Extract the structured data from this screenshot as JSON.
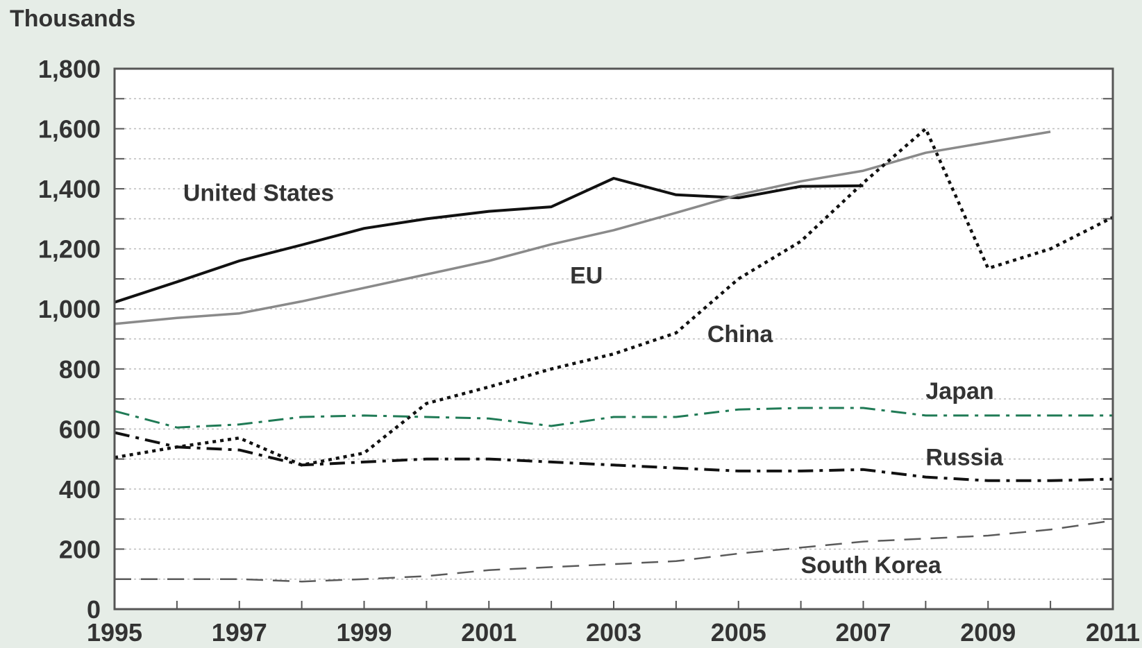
{
  "chart_data": {
    "type": "line",
    "ylabel": "Thousands",
    "ylim": [
      0,
      1800
    ],
    "xlim": [
      1995,
      2011
    ],
    "yticks": [
      0,
      200,
      400,
      600,
      800,
      1000,
      1200,
      1400,
      1600,
      1800
    ],
    "ytick_labels": [
      "0",
      "200",
      "400",
      "600",
      "800",
      "1,000",
      "1,200",
      "1,400",
      "1,600",
      "1,800"
    ],
    "xticks": [
      1995,
      1997,
      1999,
      2001,
      2003,
      2005,
      2007,
      2009,
      2011
    ],
    "xtick_labels": [
      "1995",
      "1997",
      "1999",
      "2001",
      "2003",
      "2005",
      "2007",
      "2009",
      "2011"
    ],
    "grid": true,
    "series": [
      {
        "name": "United States",
        "color": "#111111",
        "style": "solid",
        "width": 4,
        "x": [
          1995,
          1996,
          1997,
          1998,
          1999,
          2000,
          2001,
          2002,
          2003,
          2004,
          2005,
          2006,
          2007
        ],
        "y": [
          1022,
          1090,
          1160,
          1213,
          1268,
          1300,
          1325,
          1340,
          1435,
          1380,
          1370,
          1408,
          1410
        ]
      },
      {
        "name": "EU",
        "color": "#8a8a8a",
        "style": "solid",
        "width": 3.5,
        "x": [
          1995,
          1996,
          1997,
          1998,
          1999,
          2000,
          2001,
          2002,
          2003,
          2004,
          2005,
          2006,
          2007,
          2008,
          2009,
          2010
        ],
        "y": [
          950,
          970,
          985,
          1025,
          1070,
          1115,
          1160,
          1215,
          1262,
          1320,
          1380,
          1425,
          1460,
          1520,
          1555,
          1590
        ]
      },
      {
        "name": "China",
        "color": "#111111",
        "style": "dotted",
        "width": 4.5,
        "x": [
          1995,
          1996,
          1997,
          1998,
          1999,
          2000,
          2001,
          2002,
          2003,
          2004,
          2005,
          2006,
          2007,
          2008,
          2009,
          2010,
          2011
        ],
        "y": [
          505,
          540,
          570,
          480,
          520,
          685,
          740,
          800,
          850,
          920,
          1100,
          1225,
          1420,
          1600,
          1135,
          1200,
          1305
        ]
      },
      {
        "name": "Japan",
        "color": "#1f7a55",
        "style": "dashdot",
        "width": 3,
        "x": [
          1995,
          1996,
          1997,
          1998,
          1999,
          2000,
          2001,
          2002,
          2003,
          2004,
          2005,
          2006,
          2007,
          2008,
          2009,
          2010,
          2011
        ],
        "y": [
          660,
          605,
          615,
          640,
          645,
          640,
          635,
          610,
          640,
          640,
          665,
          670,
          670,
          645,
          645,
          645,
          645
        ]
      },
      {
        "name": "Russia",
        "color": "#111111",
        "style": "dashdot",
        "width": 4,
        "x": [
          1995,
          1996,
          1997,
          1998,
          1999,
          2000,
          2001,
          2002,
          2003,
          2004,
          2005,
          2006,
          2007,
          2008,
          2009,
          2010,
          2011
        ],
        "y": [
          588,
          540,
          530,
          480,
          490,
          500,
          500,
          490,
          480,
          470,
          460,
          460,
          465,
          440,
          428,
          428,
          433
        ]
      },
      {
        "name": "South Korea",
        "color": "#5a5a5a",
        "style": "dashed",
        "width": 2.5,
        "x": [
          1995,
          1996,
          1997,
          1998,
          1999,
          2000,
          2001,
          2002,
          2003,
          2004,
          2005,
          2006,
          2007,
          2008,
          2009,
          2010,
          2011
        ],
        "y": [
          100,
          100,
          100,
          92,
          100,
          110,
          130,
          140,
          150,
          160,
          185,
          205,
          225,
          235,
          245,
          265,
          295
        ]
      }
    ],
    "series_labels": [
      {
        "text": "United States",
        "x": 1996.1,
        "y": 1360
      },
      {
        "text": "EU",
        "x": 2002.3,
        "y": 1085
      },
      {
        "text": "China",
        "x": 2004.5,
        "y": 890
      },
      {
        "text": "Japan",
        "x": 2008.0,
        "y": 700
      },
      {
        "text": "Russia",
        "x": 2008.0,
        "y": 480
      },
      {
        "text": "South Korea",
        "x": 2006.0,
        "y": 120
      }
    ]
  }
}
